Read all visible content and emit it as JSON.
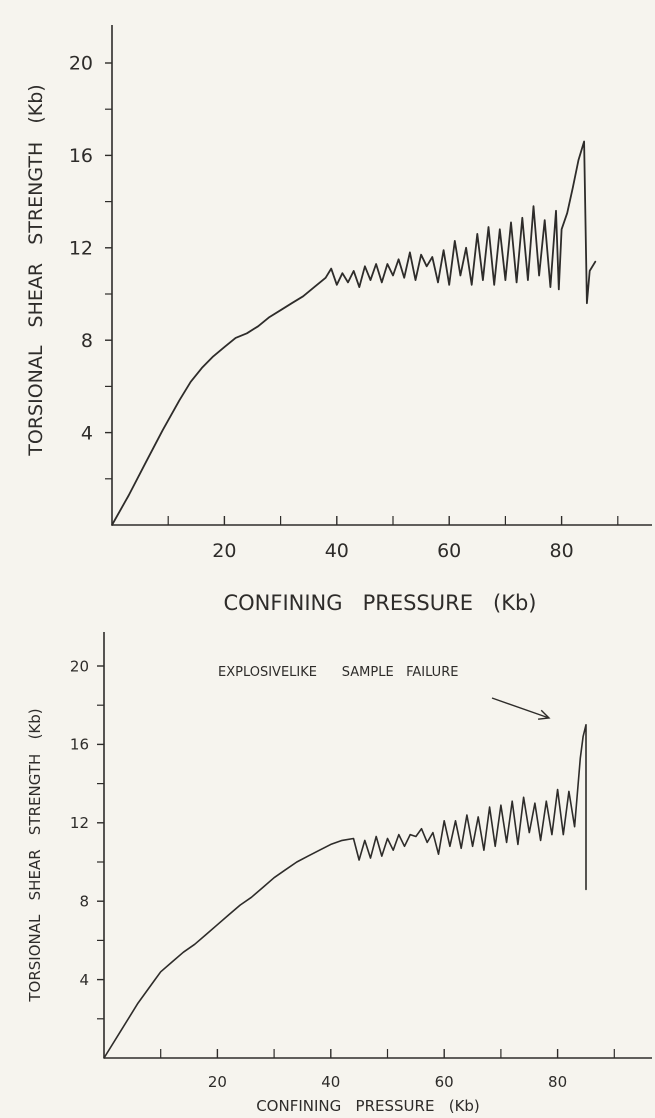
{
  "chart_data": [
    {
      "type": "line",
      "title": "",
      "xlabel": "CONFINING   PRESSURE   (Kb)",
      "ylabel": "TORSIONAL   SHEAR   STRENGTH   (Kb)",
      "xlim": [
        0,
        100
      ],
      "ylim": [
        0,
        22
      ],
      "x_ticks": [
        20,
        40,
        60,
        80
      ],
      "y_ticks": [
        4,
        8,
        12,
        16,
        20
      ],
      "grid": false,
      "legend": "none",
      "annotations": [],
      "series": [
        {
          "x": [
            0,
            3,
            6,
            9,
            12,
            14,
            16,
            18,
            20,
            22,
            24,
            26,
            28,
            30,
            32,
            34,
            36,
            38,
            39,
            40,
            41,
            42,
            43,
            44,
            45,
            46,
            47,
            48,
            49,
            50,
            51,
            52,
            53,
            54,
            55,
            56,
            57,
            58,
            59,
            60,
            61,
            62,
            63,
            64,
            65,
            66,
            67,
            68,
            69,
            70,
            71,
            72,
            73,
            74,
            75,
            76,
            77,
            78,
            79,
            79.5,
            80,
            81,
            82,
            83,
            84,
            84.5,
            85,
            86
          ],
          "y": [
            0,
            1.3,
            2.7,
            4.1,
            5.4,
            6.2,
            6.8,
            7.3,
            7.7,
            8.1,
            8.3,
            8.6,
            9.0,
            9.3,
            9.6,
            9.9,
            10.3,
            10.7,
            11.1,
            10.4,
            10.9,
            10.5,
            11.0,
            10.3,
            11.2,
            10.6,
            11.3,
            10.5,
            11.3,
            10.8,
            11.5,
            10.7,
            11.8,
            10.6,
            11.7,
            11.2,
            11.6,
            10.5,
            11.9,
            10.4,
            12.3,
            10.8,
            12.0,
            10.4,
            12.6,
            10.6,
            12.9,
            10.4,
            12.8,
            10.6,
            13.1,
            10.5,
            13.3,
            10.6,
            13.8,
            10.8,
            13.2,
            10.3,
            13.6,
            10.2,
            12.8,
            13.5,
            14.6,
            15.8,
            16.6,
            9.6,
            11.0,
            11.4
          ]
        }
      ]
    },
    {
      "type": "line",
      "title": "",
      "xlabel": "CONFINING   PRESSURE   (Kb)",
      "ylabel": "TORSIONAL   SHEAR   STRENGTH   (Kb)",
      "xlim": [
        0,
        100
      ],
      "ylim": [
        0,
        22
      ],
      "x_ticks": [
        20,
        40,
        60,
        80
      ],
      "y_ticks": [
        4,
        8,
        12,
        16,
        20
      ],
      "grid": false,
      "legend": "none",
      "annotations": [
        "EXPLOSIVELIKE      SAMPLE   FAILURE"
      ],
      "series": [
        {
          "x": [
            0,
            3,
            6,
            9,
            10,
            12,
            14,
            16,
            18,
            20,
            22,
            24,
            26,
            28,
            30,
            32,
            34,
            36,
            38,
            40,
            42,
            44,
            45,
            46,
            47,
            48,
            49,
            50,
            51,
            52,
            53,
            54,
            55,
            56,
            57,
            58,
            59,
            60,
            61,
            62,
            63,
            64,
            65,
            66,
            67,
            68,
            69,
            70,
            71,
            72,
            73,
            74,
            75,
            76,
            77,
            78,
            79,
            80,
            81,
            82,
            83,
            84,
            84.5,
            85,
            85,
            85
          ],
          "y": [
            0,
            1.4,
            2.8,
            4.0,
            4.4,
            4.9,
            5.4,
            5.8,
            6.3,
            6.8,
            7.3,
            7.8,
            8.2,
            8.7,
            9.2,
            9.6,
            10.0,
            10.3,
            10.6,
            10.9,
            11.1,
            11.2,
            10.1,
            11.1,
            10.2,
            11.3,
            10.3,
            11.2,
            10.6,
            11.4,
            10.8,
            11.4,
            11.3,
            11.7,
            11.0,
            11.5,
            10.4,
            12.1,
            10.8,
            12.1,
            10.7,
            12.4,
            10.8,
            12.3,
            10.6,
            12.8,
            10.8,
            12.9,
            11.0,
            13.1,
            10.9,
            13.3,
            11.5,
            13.0,
            11.1,
            13.1,
            11.4,
            13.7,
            11.4,
            13.6,
            11.8,
            15.3,
            16.4,
            17.0,
            16.6,
            8.6
          ]
        }
      ]
    }
  ]
}
